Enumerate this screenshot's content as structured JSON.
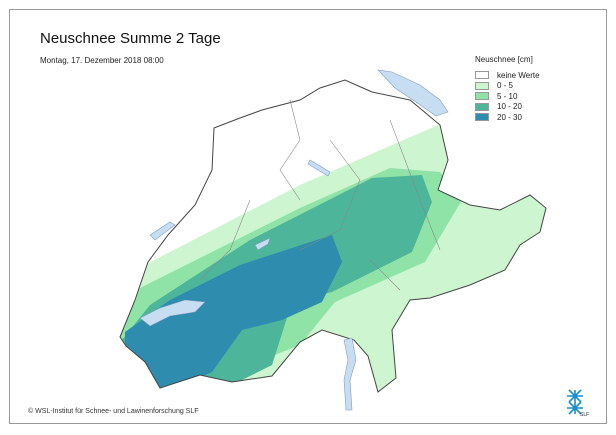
{
  "title": "Neuschnee Summe 2 Tage",
  "subtitle": "Montag, 17. Dezember 2018 08:00",
  "legend": {
    "title": "Neuschnee [cm]",
    "items": [
      {
        "label": "keine Werte",
        "color": "#ffffff"
      },
      {
        "label": "0 - 5",
        "color": "#cdf5cf"
      },
      {
        "label": "5 - 10",
        "color": "#8fe3a6"
      },
      {
        "label": "10 - 20",
        "color": "#4db59a"
      },
      {
        "label": "20 - 30",
        "color": "#2e8cae"
      }
    ]
  },
  "lake_color": "#c7ddf2",
  "copyright": "© WSL-Institut für Schnee- und Lawinenforschung SLF",
  "logo_text": "SLF"
}
